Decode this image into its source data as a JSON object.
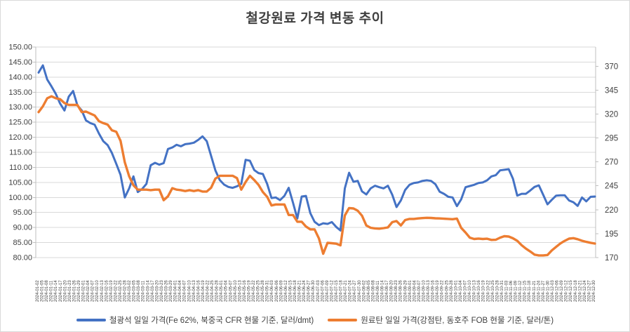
{
  "title": "철강원료 가격 변동 추이",
  "colors": {
    "iron_ore": "#4472C4",
    "coking_coal": "#ED7D31",
    "gridline": "#D9D9D9",
    "axis_line": "#BFBFBF",
    "axis_text": "#404040",
    "title_text": "#404040",
    "background": "#FFFFFF"
  },
  "left_axis": {
    "labels": [
      "150.00",
      "145.00",
      "140.00",
      "135.00",
      "130.00",
      "125.00",
      "120.00",
      "115.00",
      "110.00",
      "105.00",
      "100.00",
      "95.00",
      "90.00",
      "85.00",
      "80.00"
    ],
    "min": 80,
    "max": 150,
    "step": 5
  },
  "right_axis": {
    "labels": [
      "370",
      "345",
      "320",
      "295",
      "270",
      "245",
      "220",
      "195",
      "170"
    ],
    "min": 170,
    "max": 390,
    "step": 25
  },
  "x_axis": {
    "labels": [
      "2024-01-02",
      "2024-01-05",
      "2024-01-08",
      "2024-01-11",
      "2024-01-14",
      "2024-01-17",
      "2024-01-20",
      "2024-01-23",
      "2024-01-26",
      "2024-01-29",
      "2024-02-01",
      "2024-02-04",
      "2024-02-07",
      "2024-02-10",
      "2024-02-13",
      "2024-02-16",
      "2024-02-19",
      "2024-02-22",
      "2024-02-25",
      "2024-02-28",
      "2024-03-02",
      "2024-03-05",
      "2024-03-08",
      "2024-03-11",
      "2024-03-14",
      "2024-03-17",
      "2024-03-20",
      "2024-03-23",
      "2024-03-26",
      "2024-03-29",
      "2024-04-01",
      "2024-04-04",
      "2024-04-07",
      "2024-04-10",
      "2024-04-13",
      "2024-04-16",
      "2024-04-19",
      "2024-04-22",
      "2024-04-25",
      "2024-04-28",
      "2024-05-01",
      "2024-05-04",
      "2024-05-07",
      "2024-05-10",
      "2024-05-13",
      "2024-05-16",
      "2024-05-19",
      "2024-05-22",
      "2024-05-25",
      "2024-05-28",
      "2024-05-31",
      "2024-06-03",
      "2024-06-06",
      "2024-06-09",
      "2024-06-12",
      "2024-06-15",
      "2024-06-18",
      "2024-06-21",
      "2024-06-24",
      "2024-06-27",
      "2024-06-30",
      "2024-07-03",
      "2024-07-06",
      "2024-07-09",
      "2024-07-12",
      "2024-07-15",
      "2024-07-18",
      "2024-07-21",
      "2024-07-24",
      "2024-07-27",
      "2024-07-30",
      "2024-08-02",
      "2024-08-05",
      "2024-08-08",
      "2024-08-11",
      "2024-08-14",
      "2024-08-17",
      "2024-08-20",
      "2024-08-23",
      "2024-08-26",
      "2024-08-29",
      "2024-09-01",
      "2024-09-04",
      "2024-09-07",
      "2024-09-10",
      "2024-09-13",
      "2024-09-16",
      "2024-09-19",
      "2024-09-22",
      "2024-09-25",
      "2024-09-28",
      "2024-10-01",
      "2024-10-04",
      "2024-10-07",
      "2024-10-10",
      "2024-10-13",
      "2024-10-16",
      "2024-10-19",
      "2024-10-22",
      "2024-10-25",
      "2024-10-28",
      "2024-10-31",
      "2024-11-03",
      "2024-11-06",
      "2024-11-09",
      "2024-11-12",
      "2024-11-15",
      "2024-11-18",
      "2024-11-21",
      "2024-11-24",
      "2024-11-27",
      "2024-11-30",
      "2024-12-03",
      "2024-12-06",
      "2024-12-09",
      "2024-12-12",
      "2024-12-15",
      "2024-12-18",
      "2024-12-21",
      "2024-12-24",
      "2024-12-27",
      "2024-12-30"
    ]
  },
  "legend": [
    {
      "label": "철광석 일일 가격(Fe 62%, 북중국 CFR 현물 기준, 달러/dmt)",
      "series": 0
    },
    {
      "label": "원료탄 일일 가격(강점탄, 동호주 FOB 현물 기준, 달러/톤)",
      "series": 1
    }
  ],
  "chart_data": {
    "type": "line",
    "grid": "horizontal",
    "legend_position": "bottom",
    "left_ylim": [
      80,
      150
    ],
    "right_ylim": [
      170,
      390
    ],
    "series": [
      {
        "name": "철광석 일일 가격(Fe 62%, 북중국 CFR 현물 기준, 달러/dmt)",
        "axis": "left",
        "color": "#4472C4",
        "stroke_width": 3,
        "values": [
          141.5,
          143.9,
          139.2,
          136.9,
          134.4,
          131.2,
          128.9,
          133.5,
          135.4,
          130.6,
          128.9,
          125.6,
          124.7,
          124.2,
          121.2,
          118.7,
          117.4,
          114.8,
          111.2,
          107.5,
          100.0,
          103.0,
          107.0,
          101.8,
          102.8,
          104.5,
          110.7,
          111.5,
          110.9,
          111.4,
          116.1,
          116.6,
          117.5,
          117.0,
          117.7,
          117.9,
          118.2,
          119.1,
          120.3,
          118.7,
          113.8,
          109.0,
          105.8,
          104.3,
          103.5,
          103.2,
          103.7,
          104.5,
          112.5,
          112.2,
          109.1,
          108.1,
          107.8,
          104.5,
          99.8,
          100.0,
          99.1,
          100.5,
          103.2,
          98.2,
          93.0,
          100.3,
          100.5,
          94.8,
          91.9,
          90.8,
          91.4,
          91.2,
          91.8,
          90.2,
          89.0,
          103.0,
          108.2,
          105.2,
          105.5,
          102.0,
          101.0,
          103.0,
          103.9,
          103.4,
          103.0,
          103.9,
          100.9,
          96.8,
          99.0,
          102.5,
          104.2,
          104.8,
          105.0,
          105.5,
          105.7,
          105.5,
          104.4,
          101.9,
          101.2,
          100.2,
          100.0,
          97.1,
          99.4,
          103.4,
          103.8,
          104.2,
          104.8,
          105.0,
          105.7,
          107.0,
          107.4,
          109.0,
          109.2,
          109.4,
          106.2,
          100.6,
          101.2,
          101.2,
          102.3,
          103.5,
          104.0,
          100.9,
          97.7,
          99.2,
          100.6,
          100.7,
          100.7,
          99.0,
          98.4,
          97.2,
          100.0,
          98.7,
          100.2,
          100.3
        ]
      },
      {
        "name": "원료탄 일일 가격(강점탄, 동호주 FOB 현물 기준, 달러/톤)",
        "axis": "right",
        "color": "#ED7D31",
        "stroke_width": 3.4,
        "values": [
          322,
          328,
          336.5,
          338.5,
          336.5,
          335.5,
          331.5,
          329.5,
          329.5,
          329.5,
          322,
          322.5,
          320.5,
          318.5,
          312.5,
          310.5,
          309,
          303,
          301.5,
          292,
          269.5,
          255,
          245.5,
          241,
          241,
          241,
          240.5,
          241,
          241,
          230,
          234,
          242.5,
          241,
          240.5,
          239.5,
          240.5,
          239.5,
          240.5,
          239,
          239,
          243,
          252.5,
          255.5,
          255.5,
          255.5,
          255.5,
          253,
          241,
          249,
          255.5,
          251,
          246,
          238.5,
          233.5,
          224.5,
          225.5,
          225.5,
          225.5,
          214.5,
          214.5,
          207.5,
          207.5,
          202.5,
          199.5,
          199.5,
          190,
          174,
          185.5,
          185,
          184.5,
          182.8,
          214,
          221.8,
          221.3,
          219,
          213.8,
          203.5,
          201.2,
          200.5,
          200.2,
          200.8,
          201.5,
          207,
          208.2,
          203.6,
          209.2,
          210.4,
          210.4,
          210.9,
          211.3,
          211.6,
          211.4,
          211.1,
          210.9,
          210.6,
          210.4,
          210.1,
          210.8,
          201,
          196.2,
          190.8,
          189.4,
          189.9,
          189.4,
          189.7,
          188.5,
          188.6,
          190.8,
          192.4,
          192,
          190.2,
          187.5,
          183,
          179.4,
          176.4,
          173.1,
          172.3,
          172.3,
          172.7,
          177.5,
          181.2,
          184.8,
          187.5,
          189.8,
          190.3,
          189.2,
          187.6,
          186.4,
          185.5,
          184.7
        ]
      }
    ]
  }
}
